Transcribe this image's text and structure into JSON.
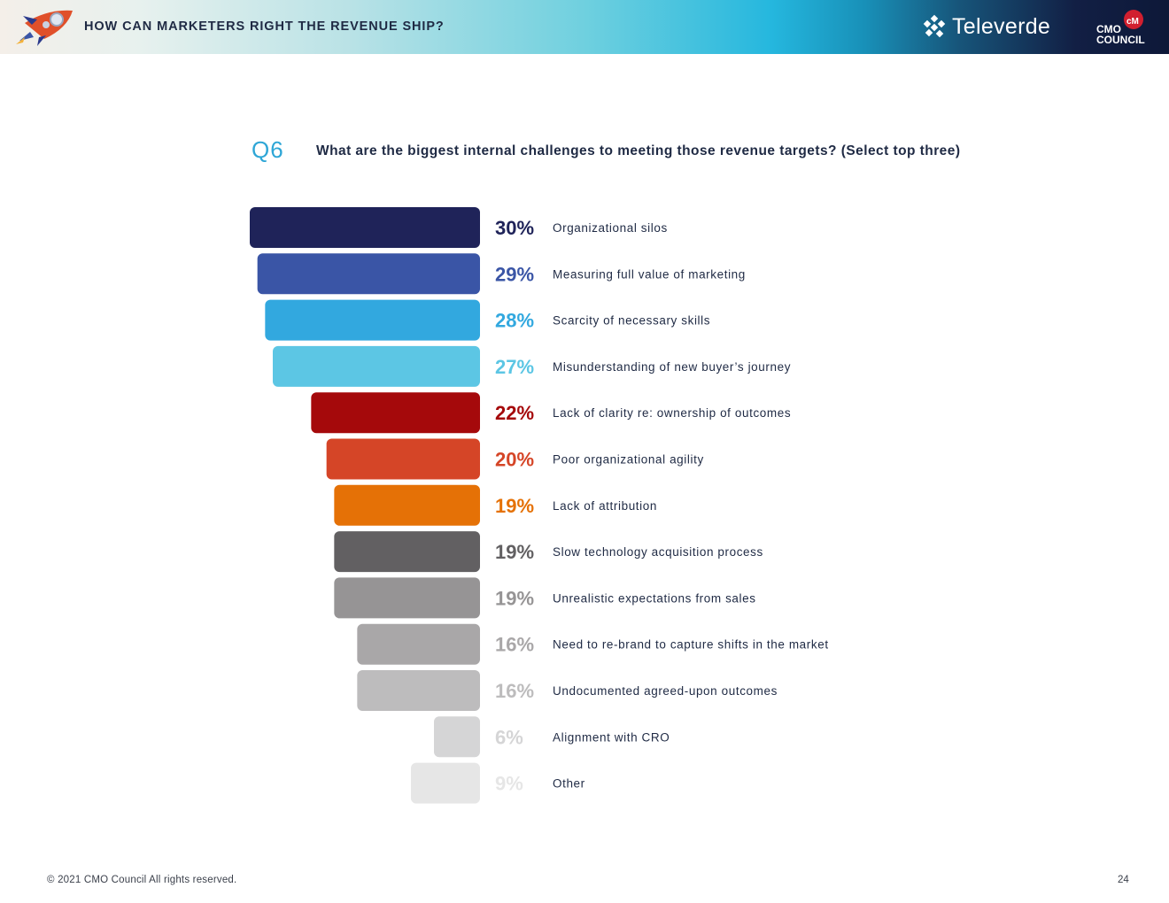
{
  "header": {
    "title": "HOW CAN MARKETERS RIGHT THE REVENUE SHIP?",
    "partner_logo_text": "Televerde",
    "council_logo_text_line1": "CMO",
    "council_logo_text_line2": "COUNCIL"
  },
  "question": {
    "number": "Q6",
    "text": "What are the biggest internal challenges to meeting those revenue targets? (Select top three)"
  },
  "chart_data": {
    "type": "bar",
    "orientation": "horizontal",
    "title": "What are the biggest internal challenges to meeting those revenue targets? (Select top three)",
    "value_unit": "%",
    "categories": [
      "Organizational silos",
      "Measuring full value of marketing",
      "Scarcity of necessary skills",
      "Misunderstanding of new buyer’s journey",
      "Lack of clarity re: ownership of outcomes",
      "Poor organizational agility",
      "Lack of attribution",
      "Slow technology acquisition process",
      "Unrealistic expectations from sales",
      "Need to re-brand to capture shifts in the market",
      "Undocumented agreed-upon outcomes",
      "Alignment with CRO",
      "Other"
    ],
    "values": [
      30,
      29,
      28,
      27,
      22,
      20,
      19,
      19,
      19,
      16,
      16,
      6,
      9
    ],
    "value_labels": [
      "30%",
      "29%",
      "28%",
      "27%",
      "22%",
      "20%",
      "19%",
      "19%",
      "19%",
      "16%",
      "16%",
      "6%",
      "9%"
    ],
    "colors": [
      "#1f2359",
      "#3a55a6",
      "#32a8df",
      "#5cc6e4",
      "#a5090b",
      "#d54527",
      "#e57106",
      "#626062",
      "#969495",
      "#a9a7a8",
      "#bdbcbd",
      "#d5d5d6",
      "#e6e6e6"
    ],
    "label_colors": [
      "#1f2359",
      "#3a55a6",
      "#32a8df",
      "#5cc6e4",
      "#a5090b",
      "#d54527",
      "#e57106",
      "#626062",
      "#969495",
      "#a9a7a8",
      "#bdbcbd",
      "#d5d5d6",
      "#e6e6e6"
    ],
    "bar_alignment": "right-aligned",
    "xlim": [
      0,
      30
    ]
  },
  "footer": {
    "copyright": "© 2021 CMO Council  All rights reserved.",
    "page_number": "24"
  }
}
